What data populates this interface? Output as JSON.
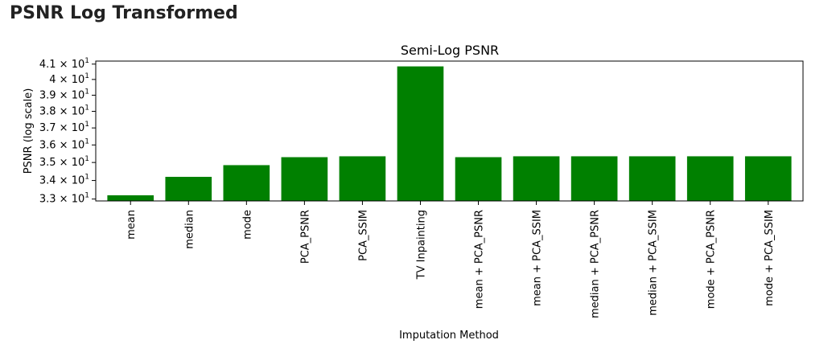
{
  "page": {
    "heading": "PSNR Log Transformed"
  },
  "chart_data": {
    "type": "bar",
    "title": "Semi-Log PSNR",
    "xlabel": "Imputation Method",
    "ylabel": "PSNR (log scale)",
    "yscale": "log",
    "ylim": [
      32.9,
      41.2
    ],
    "yticks": [
      {
        "value": 33,
        "mantissa": "3.3"
      },
      {
        "value": 34,
        "mantissa": "3.4"
      },
      {
        "value": 35,
        "mantissa": "3.5"
      },
      {
        "value": 36,
        "mantissa": "3.6"
      },
      {
        "value": 37,
        "mantissa": "3.7"
      },
      {
        "value": 38,
        "mantissa": "3.8"
      },
      {
        "value": 39,
        "mantissa": "3.9"
      },
      {
        "value": 40,
        "mantissa": "4"
      },
      {
        "value": 41,
        "mantissa": "4.1"
      }
    ],
    "ytick_base": "10",
    "ytick_exponent": "1",
    "categories": [
      "mean",
      "median",
      "mode",
      "PCA_PSNR",
      "PCA_SSIM",
      "TV Inpainting",
      "mean + PCA_PSNR",
      "mean + PCA_SSIM",
      "median + PCA_PSNR",
      "median + PCA_SSIM",
      "mode + PCA_PSNR",
      "mode + PCA_SSIM"
    ],
    "values": [
      33.2,
      34.2,
      34.85,
      35.3,
      35.35,
      40.85,
      35.3,
      35.35,
      35.35,
      35.35,
      35.35,
      35.35
    ],
    "bar_color": "#008000",
    "grid": false,
    "legend": "none"
  }
}
